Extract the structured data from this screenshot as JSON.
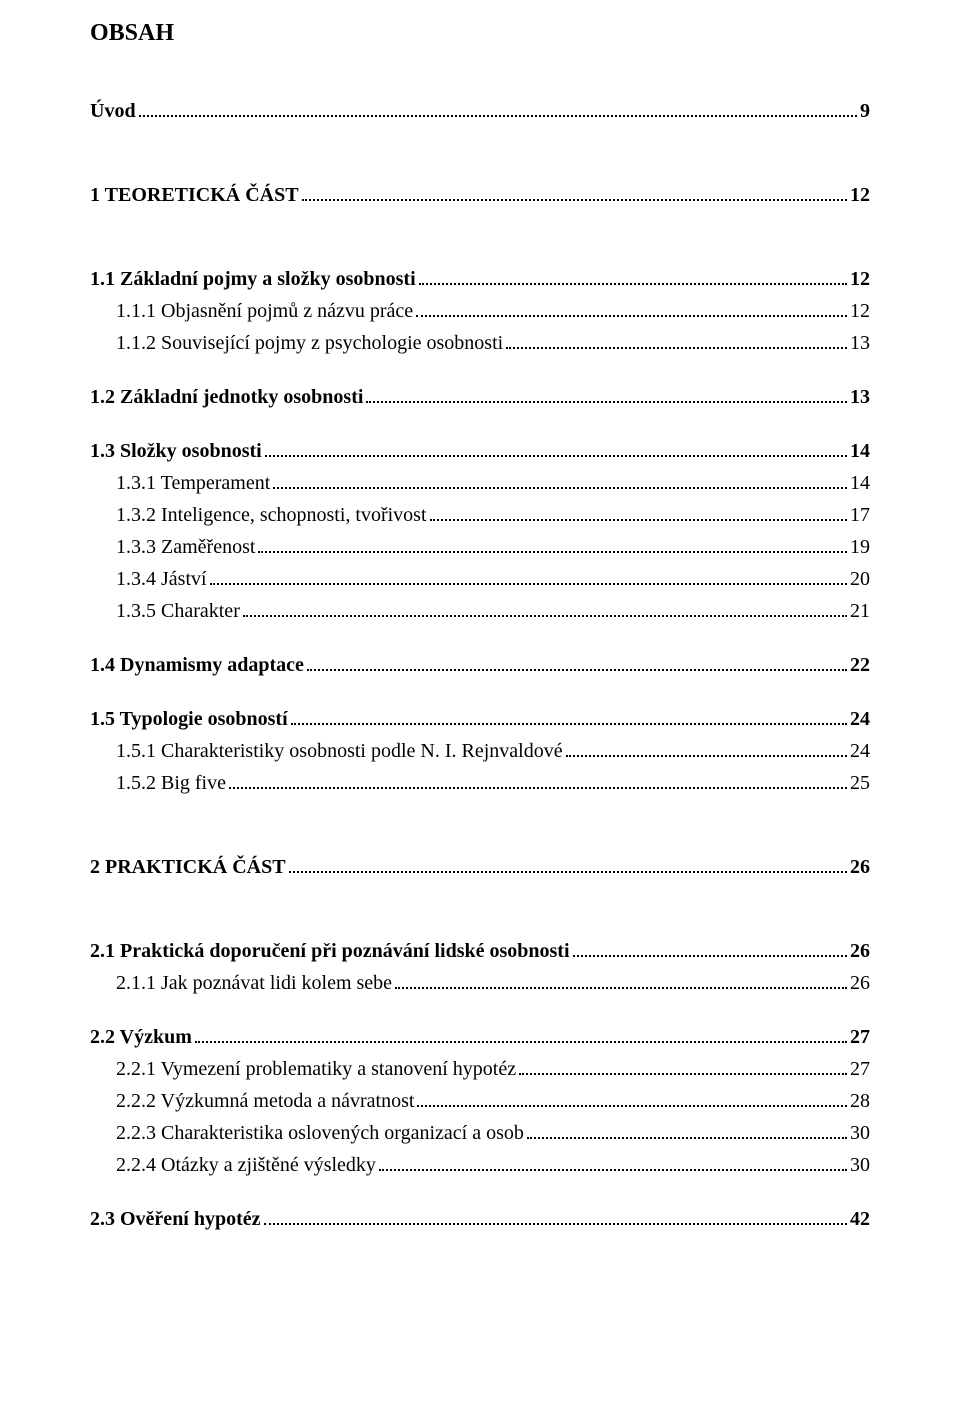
{
  "title": "OBSAH",
  "entries": [
    {
      "label": "Úvod",
      "page": "9",
      "bold": true,
      "level": 0,
      "spacer": "sp-large"
    },
    {
      "label": "1 TEORETICKÁ ČÁST",
      "page": "12",
      "bold": true,
      "level": 0,
      "spacer": "sp-big"
    },
    {
      "label": "1.1 Základní pojmy a složky osobnosti",
      "page": "12",
      "bold": true,
      "level": 0,
      "spacer": "sp-big"
    },
    {
      "label": "1.1.1 Objasnění pojmů z názvu práce",
      "page": "12",
      "bold": false,
      "level": 1,
      "spacer": "sp-small"
    },
    {
      "label": "1.1.2 Související pojmy z psychologie osobnosti",
      "page": "13",
      "bold": false,
      "level": 1,
      "spacer": "sp-small"
    },
    {
      "label": "1.2 Základní jednotky osobnosti",
      "page": "13",
      "bold": true,
      "level": 0,
      "spacer": "sp-med"
    },
    {
      "label": "1.3 Složky osobnosti",
      "page": "14",
      "bold": true,
      "level": 0,
      "spacer": "sp-med"
    },
    {
      "label": "1.3.1 Temperament",
      "page": "14",
      "bold": false,
      "level": 1,
      "spacer": "sp-small"
    },
    {
      "label": "1.3.2 Inteligence, schopnosti, tvořivost",
      "page": "17",
      "bold": false,
      "level": 1,
      "spacer": "sp-small"
    },
    {
      "label": "1.3.3 Zaměřenost",
      "page": "19",
      "bold": false,
      "level": 1,
      "spacer": "sp-small"
    },
    {
      "label": "1.3.4 Jáství",
      "page": "20",
      "bold": false,
      "level": 1,
      "spacer": "sp-small"
    },
    {
      "label": "1.3.5 Charakter",
      "page": "21",
      "bold": false,
      "level": 1,
      "spacer": "sp-small"
    },
    {
      "label": "1.4 Dynamismy adaptace",
      "page": "22",
      "bold": true,
      "level": 0,
      "spacer": "sp-med"
    },
    {
      "label": "1.5 Typologie osobností",
      "page": "24",
      "bold": true,
      "level": 0,
      "spacer": "sp-med"
    },
    {
      "label": "1.5.1 Charakteristiky osobnosti podle N. I. Rejnvaldové",
      "page": "24",
      "bold": false,
      "level": 1,
      "spacer": "sp-small"
    },
    {
      "label": "1.5.2 Big five",
      "page": "25",
      "bold": false,
      "level": 1,
      "spacer": "sp-small"
    },
    {
      "label": "2 PRAKTICKÁ ČÁST",
      "page": "26",
      "bold": true,
      "level": 0,
      "spacer": "sp-big"
    },
    {
      "label": "2.1 Praktická doporučení při poznávání lidské osobnosti",
      "page": "26",
      "bold": true,
      "level": 0,
      "spacer": "sp-big"
    },
    {
      "label": "2.1.1 Jak poznávat lidi kolem sebe",
      "page": "26",
      "bold": false,
      "level": 1,
      "spacer": "sp-small"
    },
    {
      "label": "2.2 Výzkum",
      "page": "27",
      "bold": true,
      "level": 0,
      "spacer": "sp-med"
    },
    {
      "label": "2.2.1 Vymezení problematiky a stanovení hypotéz",
      "page": "27",
      "bold": false,
      "level": 1,
      "spacer": "sp-small"
    },
    {
      "label": "2.2.2 Výzkumná metoda a návratnost",
      "page": "28",
      "bold": false,
      "level": 1,
      "spacer": "sp-small"
    },
    {
      "label": "2.2.3 Charakteristika oslovených organizací a osob",
      "page": "30",
      "bold": false,
      "level": 1,
      "spacer": "sp-small"
    },
    {
      "label": "2.2.4 Otázky a zjištěné výsledky",
      "page": "30",
      "bold": false,
      "level": 1,
      "spacer": "sp-small"
    },
    {
      "label": "2.3 Ověření hypotéz",
      "page": "42",
      "bold": true,
      "level": 0,
      "spacer": "sp-med"
    }
  ],
  "colors": {
    "text": "#000000",
    "background": "#ffffff"
  },
  "font": {
    "family": "Times New Roman",
    "title_size_pt": 18,
    "body_size_pt": 15
  }
}
